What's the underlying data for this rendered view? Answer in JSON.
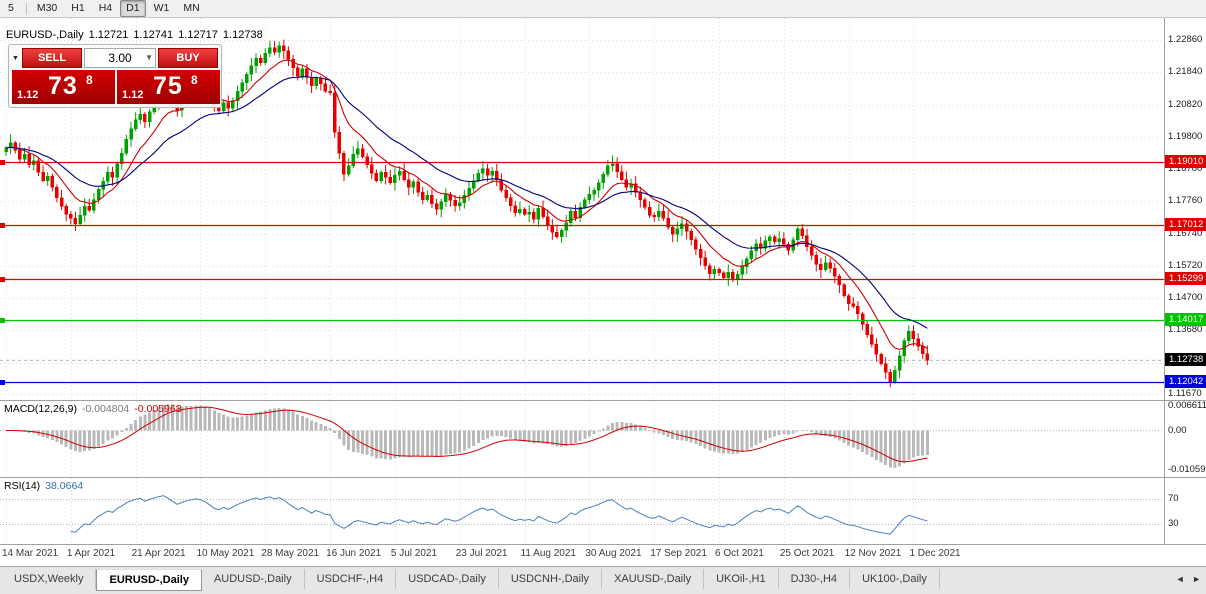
{
  "toolbar": {
    "timeframes": [
      {
        "label": "5",
        "active": false
      },
      {
        "label": "M30",
        "active": false
      },
      {
        "label": "H1",
        "active": false
      },
      {
        "label": "H4",
        "active": false
      },
      {
        "label": "D1",
        "active": true
      },
      {
        "label": "W1",
        "active": false
      },
      {
        "label": "MN",
        "active": false
      }
    ]
  },
  "chart": {
    "title_symbol": "EURUSD-,Daily",
    "ohlc": {
      "open": "1.12721",
      "high": "1.12741",
      "low": "1.12717",
      "close": "1.12738"
    }
  },
  "trade_panel": {
    "sell_label": "SELL",
    "buy_label": "BUY",
    "volume": "3.00",
    "sell_price": {
      "prefix": "1.12",
      "big": "73",
      "sup": "8"
    },
    "buy_price": {
      "prefix": "1.12",
      "big": "75",
      "sup": "8"
    }
  },
  "macd": {
    "label": "MACD(12,26,9)",
    "value_main": "-0.004804",
    "value_signal": "-0.005963",
    "axis_labels": [
      "0.006611",
      "0.00",
      "-0.010597"
    ],
    "scale_max": 0.006611,
    "scale_min": -0.010597,
    "fast": 12,
    "slow": 26,
    "signal_period": 9,
    "histogram_color": "#b9b9b9",
    "signal_color": "#cc0000"
  },
  "rsi": {
    "label": "RSI(14)",
    "value": "38.0664",
    "period": 14,
    "levels": [
      70,
      30
    ],
    "axis_labels": [
      "70",
      "30"
    ],
    "scale_min": 2,
    "scale_max": 98,
    "line_color": "#4a7fc1"
  },
  "icons": {
    "dropdown": "▼",
    "collapse": "▼",
    "tab_left": "◄",
    "tab_right": "►"
  },
  "tabs": [
    {
      "label": "USDX,Weekly",
      "active": false
    },
    {
      "label": "EURUSD-,Daily",
      "active": true
    },
    {
      "label": "AUDUSD-,Daily",
      "active": false
    },
    {
      "label": "USDCHF-,H4",
      "active": false
    },
    {
      "label": "USDCAD-,Daily",
      "active": false
    },
    {
      "label": "USDCNH-,Daily",
      "active": false
    },
    {
      "label": "XAUUSD-,Daily",
      "active": false
    },
    {
      "label": "UKOil-,H1",
      "active": false
    },
    {
      "label": "DJ30-,H4",
      "active": false
    },
    {
      "label": "UK100-,Daily",
      "active": false
    }
  ],
  "chart_data": {
    "type": "candlestick",
    "symbol": "EURUSD-",
    "timeframe": "Daily",
    "bars_per_label": 14,
    "x_labels": [
      "14 Mar 2021",
      "1 Apr 2021",
      "21 Apr 2021",
      "10 May 2021",
      "28 May 2021",
      "16 Jun 2021",
      "5 Jul 2021",
      "23 Jul 2021",
      "11 Aug 2021",
      "30 Aug 2021",
      "17 Sep 2021",
      "6 Oct 2021",
      "25 Oct 2021",
      "12 Nov 2021",
      "1 Dec 2021"
    ],
    "ylim": [
      1.1148,
      1.2356
    ],
    "y_ticks": [
      "1.22860",
      "1.21840",
      "1.20820",
      "1.19800",
      "1.18780",
      "1.17760",
      "1.16740",
      "1.15720",
      "1.14700",
      "1.13680",
      "1.12660",
      "1.11670"
    ],
    "up_color": "#00a000",
    "down_color": "#e60000",
    "moving_averages": [
      {
        "type": "ema",
        "period": 10,
        "color": "#cc0000"
      },
      {
        "type": "ema",
        "period": 24,
        "color": "#000080"
      }
    ],
    "levels": [
      {
        "value": 1.1901,
        "label": "1.19010",
        "color": "#e00000"
      },
      {
        "value": 1.17012,
        "label": "1.17012",
        "color": "#e00000"
      },
      {
        "value": 1.15299,
        "label": "1.15299",
        "color": "#e00000"
      },
      {
        "value": 1.14017,
        "label": "1.14017",
        "color": "#00c400"
      },
      {
        "value": 1.12042,
        "label": "1.12042",
        "color": "#0000dd"
      }
    ],
    "current_price": {
      "value": 1.12738,
      "label": "1.12738"
    },
    "closes": [
      1.1945,
      1.1962,
      1.1938,
      1.191,
      1.1925,
      1.1892,
      1.1905,
      1.1868,
      1.1842,
      1.1855,
      1.182,
      1.1788,
      1.176,
      1.1735,
      1.1722,
      1.1705,
      1.1732,
      1.176,
      1.1748,
      1.1782,
      1.1815,
      1.184,
      1.1868,
      1.1852,
      1.1895,
      1.1928,
      1.1972,
      1.2005,
      1.2035,
      1.2052,
      1.2028,
      1.206,
      1.2088,
      1.2115,
      1.214,
      1.2118,
      1.2092,
      1.2065,
      1.2095,
      1.2122,
      1.2138,
      1.2155,
      1.2148,
      1.2132,
      1.2108,
      1.2075,
      1.2062,
      1.2088,
      1.207,
      1.2095,
      1.2125,
      1.2152,
      1.2178,
      1.2205,
      1.2228,
      1.2215,
      1.2245,
      1.2262,
      1.2248,
      1.2268,
      1.2252,
      1.2225,
      1.2198,
      1.2172,
      1.2195,
      1.2168,
      1.2142,
      1.2165,
      1.2148,
      1.2125,
      1.212,
      1.1995,
      1.1928,
      1.1862,
      1.1888,
      1.1925,
      1.1942,
      1.1918,
      1.1892,
      1.1865,
      1.1842,
      1.1868,
      1.1852,
      1.1835,
      1.1858,
      1.1872,
      1.1845,
      1.182,
      1.1838,
      1.1805,
      1.1782,
      1.1795,
      1.1768,
      1.1752,
      1.1775,
      1.1798,
      1.178,
      1.1762,
      1.1772,
      1.1795,
      1.1818,
      1.1842,
      1.1865,
      1.188,
      1.1858,
      1.1872,
      1.1845,
      1.1812,
      1.1788,
      1.1762,
      1.174,
      1.1752,
      1.1735,
      1.1742,
      1.172,
      1.1755,
      1.1728,
      1.17,
      1.1678,
      1.1665,
      1.1685,
      1.1708,
      1.1745,
      1.1725,
      1.1758,
      1.1782,
      1.1798,
      1.1812,
      1.1835,
      1.1862,
      1.1888,
      1.1895,
      1.187,
      1.1845,
      1.182,
      1.1832,
      1.1805,
      1.1782,
      1.1758,
      1.1732,
      1.1728,
      1.1745,
      1.1722,
      1.1695,
      1.1672,
      1.169,
      1.1705,
      1.1682,
      1.1655,
      1.1625,
      1.1598,
      1.1572,
      1.1548,
      1.1562,
      1.155,
      1.1535,
      1.1552,
      1.1529,
      1.1545,
      1.157,
      1.1595,
      1.162,
      1.1642,
      1.1628,
      1.1652,
      1.1665,
      1.1648,
      1.1658,
      1.164,
      1.1622,
      1.1655,
      1.169,
      1.1668,
      1.1632,
      1.1605,
      1.1578,
      1.156,
      1.1582,
      1.1565,
      1.154,
      1.1512,
      1.1478,
      1.1452,
      1.1445,
      1.142,
      1.1388,
      1.1355,
      1.1325,
      1.1292,
      1.1262,
      1.1235,
      1.1205,
      1.1242,
      1.1288,
      1.1335,
      1.1365,
      1.1342,
      1.1318,
      1.1295,
      1.12738
    ],
    "indicators": [
      {
        "name": "MACD",
        "params": [
          12,
          26,
          9
        ],
        "current_main": -0.004804,
        "current_signal": -0.005963
      },
      {
        "name": "RSI",
        "params": [
          14
        ],
        "current": 38.0664
      }
    ]
  }
}
